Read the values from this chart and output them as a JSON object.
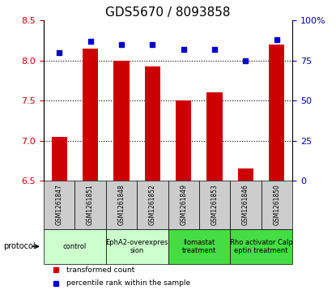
{
  "title": "GDS5670 / 8093858",
  "samples": [
    "GSM1261847",
    "GSM1261851",
    "GSM1261848",
    "GSM1261852",
    "GSM1261849",
    "GSM1261853",
    "GSM1261846",
    "GSM1261850"
  ],
  "red_values": [
    7.05,
    8.15,
    8.0,
    7.93,
    7.5,
    7.6,
    6.65,
    8.2
  ],
  "blue_values": [
    80,
    87,
    85,
    85,
    82,
    82,
    75,
    88
  ],
  "ylim_left": [
    6.5,
    8.5
  ],
  "ylim_right": [
    0,
    100
  ],
  "yticks_left": [
    6.5,
    7.0,
    7.5,
    8.0,
    8.5
  ],
  "yticks_right": [
    0,
    25,
    50,
    75,
    100
  ],
  "ytick_labels_right": [
    "0",
    "25",
    "50",
    "75",
    "100%"
  ],
  "hlines": [
    7.0,
    7.5,
    8.0
  ],
  "bar_color": "#cc0000",
  "dot_color": "#0000cc",
  "protocols": [
    {
      "label": "control",
      "span": [
        0,
        2
      ],
      "color": "#ccffcc"
    },
    {
      "label": "EphA2-overexpres\nsion",
      "span": [
        2,
        4
      ],
      "color": "#ccffcc"
    },
    {
      "label": "Ilomastat\ntreatment",
      "span": [
        4,
        6
      ],
      "color": "#44dd44"
    },
    {
      "label": "Rho activator Calp\neptin treatment",
      "span": [
        6,
        8
      ],
      "color": "#44dd44"
    }
  ],
  "legend_items": [
    {
      "label": "transformed count",
      "color": "#cc0000"
    },
    {
      "label": "percentile rank within the sample",
      "color": "#0000cc"
    }
  ],
  "protocol_label": "protocol",
  "background_color": "#ffffff",
  "bar_width": 0.5,
  "base_value": 6.5,
  "sample_box_color": "#cccccc",
  "title_fontsize": 11,
  "axis_fontsize": 8,
  "label_fontsize": 7
}
